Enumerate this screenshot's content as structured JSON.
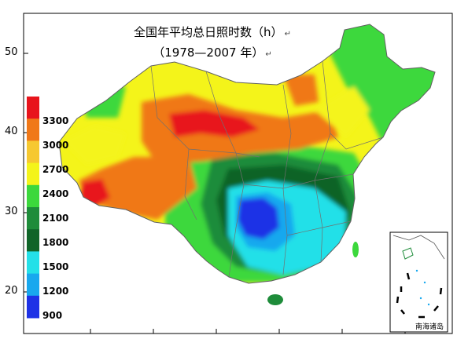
{
  "title": {
    "line1": "全国年平均总日照时数（h）",
    "line2": "（1978—2007 年）",
    "return_mark": "↵"
  },
  "latitude_labels": [
    "50",
    "40",
    "30",
    "20"
  ],
  "legend": {
    "levels": [
      "3300",
      "3000",
      "2700",
      "2400",
      "2100",
      "1800",
      "1500",
      "1200",
      "900"
    ],
    "colors": [
      "#e8141c",
      "#f07818",
      "#f6c830",
      "#f4f41a",
      "#3cd83c",
      "#1e8c3a",
      "#106428",
      "#24e0e8",
      "#18a8ee",
      "#1e32e6"
    ]
  },
  "inset_label": "南海诸岛"
}
